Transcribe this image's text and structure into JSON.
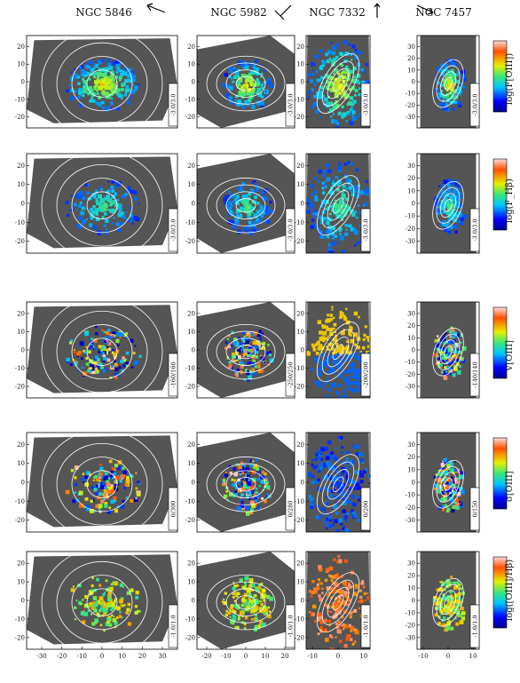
{
  "galaxies": [
    {
      "name": "NGC 5846",
      "xticks": [
        "-30",
        "-20",
        "-10",
        "0",
        "10",
        "20",
        "30"
      ],
      "yticks": [
        "20",
        "10",
        "0",
        "-10",
        "-20"
      ]
    },
    {
      "name": "NGC 5982",
      "xticks": [
        "-20",
        "-10",
        "0",
        "10",
        "20"
      ],
      "yticks": [
        "20",
        "10",
        "0",
        "-10",
        "-20"
      ]
    },
    {
      "name": "NGC 7332",
      "xticks": [
        "-10",
        "0",
        "10"
      ],
      "yticks": [
        "20",
        "10",
        "0",
        "-10",
        "-20"
      ]
    },
    {
      "name": "NGC 7457",
      "xticks": [
        "-10",
        "0",
        "10"
      ],
      "yticks": [
        "30",
        "20",
        "10",
        "0",
        "-10",
        "-20",
        "-30"
      ]
    }
  ],
  "rows": [
    {
      "colorbar_label": "log(F[OIII])",
      "ranges": [
        "-3.0/3.0",
        "-3.0/3.0",
        "-3.0/3.0",
        "-3.0/3.0"
      ]
    },
    {
      "colorbar_label": "log(F_Hβ)",
      "ranges": [
        "-3.0/3.0",
        "-3.0/3.0",
        "-3.0/3.0",
        "-3.0/3.0"
      ]
    },
    {
      "colorbar_label": "V[OIII]",
      "ranges": [
        "-160/160",
        "-250/250",
        "-200/200",
        "-140/140"
      ]
    },
    {
      "colorbar_label": "σ[OIII]",
      "ranges": [
        "0/300",
        "0/280",
        "0/200",
        "0/150"
      ]
    },
    {
      "colorbar_label": "log([OIII]/Hβ)",
      "ranges": [
        "-1.0/1.0",
        "-1.0/1.0",
        "-1.0/1.0",
        "-1.0/1.0"
      ]
    }
  ],
  "colors": {
    "no_data": "#555555",
    "contours": "#ffffff",
    "frame": "#000000"
  }
}
